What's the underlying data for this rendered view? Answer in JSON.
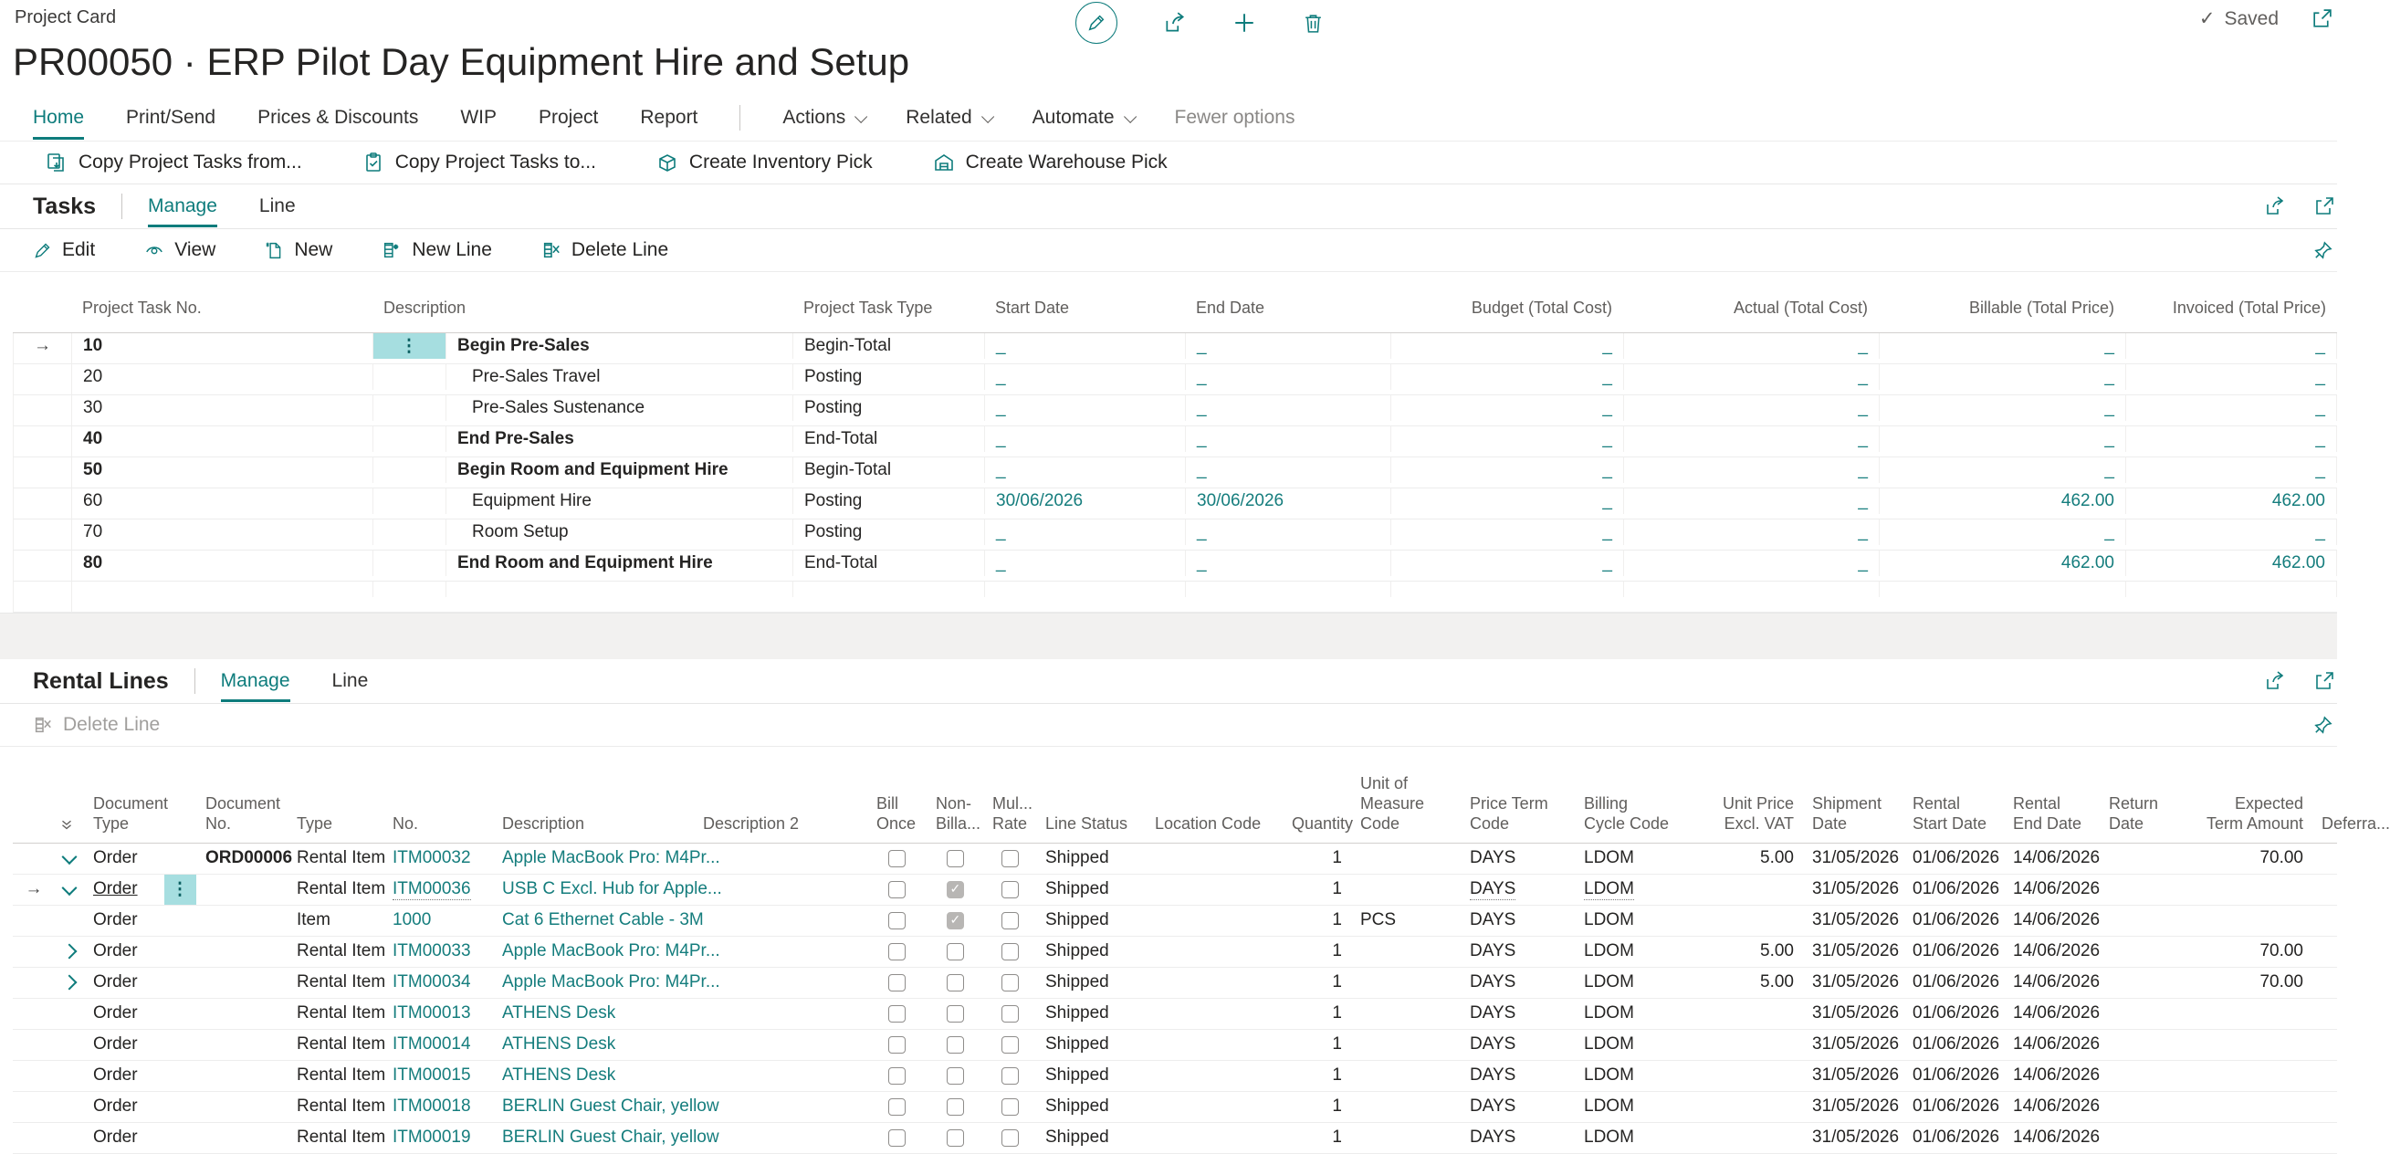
{
  "page": {
    "breadcrumb": "Project Card",
    "title": "PR00050 · ERP Pilot Day Equipment Hire and Setup",
    "saved_label": "Saved",
    "saved_check": "✓",
    "accent_color": "#0e7c7c",
    "link_color": "#157d7d",
    "selected_cell_color": "#a6dee0",
    "icons": [
      "edit-pencil-circle",
      "share",
      "add",
      "delete-trash",
      "popout-window",
      "pin",
      "collapse-all-chevrons"
    ]
  },
  "menu": {
    "items": [
      "Home",
      "Print/Send",
      "Prices & Discounts",
      "WIP",
      "Project",
      "Report"
    ],
    "dropdowns": [
      "Actions",
      "Related",
      "Automate"
    ],
    "fewer_options": "Fewer options"
  },
  "ribbon": [
    {
      "label": "Copy Project Tasks from...",
      "icon": "copy-from-icon"
    },
    {
      "label": "Copy Project Tasks to...",
      "icon": "copy-to-icon"
    },
    {
      "label": "Create Inventory Pick",
      "icon": "inventory-pick-icon"
    },
    {
      "label": "Create Warehouse Pick",
      "icon": "warehouse-pick-icon"
    }
  ],
  "tasks": {
    "title": "Tasks",
    "tabs": [
      "Manage",
      "Line"
    ],
    "toolbar": [
      "Edit",
      "View",
      "New",
      "New Line",
      "Delete Line"
    ],
    "columns": [
      "Project Task No.",
      "Description",
      "Project Task Type",
      "Start Date",
      "End Date",
      "Budget (Total Cost)",
      "Actual (Total Cost)",
      "Billable (Total Price)",
      "Invoiced (Total Price)"
    ],
    "rows": [
      {
        "arrow": true,
        "no": "10",
        "selected_cell": true,
        "desc": "Begin Pre-Sales",
        "bold": true,
        "indent": false,
        "type": "Begin-Total",
        "start": "_",
        "end": "_",
        "budget": "_",
        "actual": "_",
        "billable": "_",
        "invoiced": "_"
      },
      {
        "arrow": false,
        "no": "20",
        "desc": "Pre-Sales Travel",
        "bold": false,
        "indent": true,
        "type": "Posting",
        "start": "_",
        "end": "_",
        "budget": "_",
        "actual": "_",
        "billable": "_",
        "invoiced": "_"
      },
      {
        "arrow": false,
        "no": "30",
        "desc": "Pre-Sales Sustenance",
        "bold": false,
        "indent": true,
        "type": "Posting",
        "start": "_",
        "end": "_",
        "budget": "_",
        "actual": "_",
        "billable": "_",
        "invoiced": "_"
      },
      {
        "arrow": false,
        "no": "40",
        "desc": "End Pre-Sales",
        "bold": true,
        "indent": false,
        "type": "End-Total",
        "start": "_",
        "end": "_",
        "budget": "_",
        "actual": "_",
        "billable": "_",
        "invoiced": "_"
      },
      {
        "arrow": false,
        "no": "50",
        "desc": "Begin Room and Equipment Hire",
        "bold": true,
        "indent": false,
        "type": "Begin-Total",
        "start": "_",
        "end": "_",
        "budget": "_",
        "actual": "_",
        "billable": "_",
        "invoiced": "_"
      },
      {
        "arrow": false,
        "no": "60",
        "desc": "Equipment Hire",
        "bold": false,
        "indent": true,
        "type": "Posting",
        "start": "30/06/2026",
        "end": "30/06/2026",
        "budget": "_",
        "actual": "_",
        "billable": "462.00",
        "invoiced": "462.00"
      },
      {
        "arrow": false,
        "no": "70",
        "desc": "Room Setup",
        "bold": false,
        "indent": true,
        "type": "Posting",
        "start": "_",
        "end": "_",
        "budget": "_",
        "actual": "_",
        "billable": "_",
        "invoiced": "_"
      },
      {
        "arrow": false,
        "no": "80",
        "desc": "End Room and Equipment Hire",
        "bold": true,
        "indent": false,
        "type": "End-Total",
        "start": "_",
        "end": "_",
        "budget": "_",
        "actual": "_",
        "billable": "462.00",
        "invoiced": "462.00"
      },
      {
        "arrow": false,
        "no": "",
        "desc": "",
        "bold": false,
        "indent": false,
        "type": "",
        "start": "",
        "end": "",
        "budget": "",
        "actual": "",
        "billable": "",
        "invoiced": ""
      }
    ]
  },
  "rental": {
    "title": "Rental Lines",
    "tabs": [
      "Manage",
      "Line"
    ],
    "toolbar": [
      "Delete Line"
    ],
    "columns": [
      "Document Type",
      "Document No.",
      "Type",
      "No.",
      "Description",
      "Description 2",
      "Bill Once",
      "Non-Billa...",
      "Mul... Rate",
      "Line Status",
      "Location Code",
      "Quantity",
      "Unit of Measure Code",
      "Price Term Code",
      "Billing Cycle Code",
      "Unit Price Excl. VAT",
      "Shipment Date",
      "Rental Start Date",
      "Rental End Date",
      "Return Date",
      "Expected Term Amount",
      "Deferra..."
    ],
    "rows": [
      {
        "arrow": false,
        "expand": "down",
        "doctype": "Order",
        "selected": false,
        "indent": false,
        "docno": "ORD00006",
        "type": "Rental Item",
        "no": "ITM00032",
        "desc": "Apple MacBook Pro: M4Pr...",
        "desc2": "",
        "cb": [
          false,
          false,
          false
        ],
        "status": "Shipped",
        "loc": "",
        "qty": "1",
        "uom": "",
        "priceterm": "DAYS",
        "cycle": "LDOM",
        "price": "5.00",
        "ship": "31/05/2026",
        "start": "01/06/2026",
        "end": "14/06/2026",
        "return": "",
        "amount": "70.00",
        "defer": ""
      },
      {
        "arrow": true,
        "expand": "down",
        "doctype": "Order",
        "selected": true,
        "indent": false,
        "docno": "",
        "type": "Rental Item",
        "no": "ITM00036",
        "desc": "USB C Excl. Hub for Apple...",
        "desc2": "",
        "cb": [
          false,
          true,
          false
        ],
        "status": "Shipped",
        "loc": "",
        "qty": "1",
        "uom": "",
        "priceterm": "DAYS",
        "cycle": "LDOM",
        "price": "",
        "ship": "31/05/2026",
        "start": "01/06/2026",
        "end": "14/06/2026",
        "return": "",
        "amount": "",
        "defer": ""
      },
      {
        "arrow": false,
        "expand": "",
        "doctype": "Order",
        "selected": false,
        "indent": true,
        "docno": "",
        "type": "Item",
        "no": "1000",
        "desc": "Cat 6 Ethernet Cable - 3M",
        "desc2": "",
        "cb": [
          false,
          true,
          false
        ],
        "status": "Shipped",
        "loc": "",
        "qty": "1",
        "uom": "PCS",
        "priceterm": "DAYS",
        "cycle": "LDOM",
        "price": "",
        "ship": "31/05/2026",
        "start": "01/06/2026",
        "end": "14/06/2026",
        "return": "",
        "amount": "",
        "defer": ""
      },
      {
        "arrow": false,
        "expand": "right",
        "doctype": "Order",
        "selected": false,
        "indent": false,
        "docno": "",
        "type": "Rental Item",
        "no": "ITM00033",
        "desc": "Apple MacBook Pro: M4Pr...",
        "desc2": "",
        "cb": [
          false,
          false,
          false
        ],
        "status": "Shipped",
        "loc": "",
        "qty": "1",
        "uom": "",
        "priceterm": "DAYS",
        "cycle": "LDOM",
        "price": "5.00",
        "ship": "31/05/2026",
        "start": "01/06/2026",
        "end": "14/06/2026",
        "return": "",
        "amount": "70.00",
        "defer": ""
      },
      {
        "arrow": false,
        "expand": "right",
        "doctype": "Order",
        "selected": false,
        "indent": false,
        "docno": "",
        "type": "Rental Item",
        "no": "ITM00034",
        "desc": "Apple MacBook Pro: M4Pr...",
        "desc2": "",
        "cb": [
          false,
          false,
          false
        ],
        "status": "Shipped",
        "loc": "",
        "qty": "1",
        "uom": "",
        "priceterm": "DAYS",
        "cycle": "LDOM",
        "price": "5.00",
        "ship": "31/05/2026",
        "start": "01/06/2026",
        "end": "14/06/2026",
        "return": "",
        "amount": "70.00",
        "defer": ""
      },
      {
        "arrow": false,
        "expand": "",
        "doctype": "Order",
        "selected": false,
        "indent": false,
        "docno": "",
        "type": "Rental Item",
        "no": "ITM00013",
        "desc": "ATHENS Desk",
        "desc2": "",
        "cb": [
          false,
          false,
          false
        ],
        "status": "Shipped",
        "loc": "",
        "qty": "1",
        "uom": "",
        "priceterm": "DAYS",
        "cycle": "LDOM",
        "price": "",
        "ship": "31/05/2026",
        "start": "01/06/2026",
        "end": "14/06/2026",
        "return": "",
        "amount": "",
        "defer": ""
      },
      {
        "arrow": false,
        "expand": "",
        "doctype": "Order",
        "selected": false,
        "indent": false,
        "docno": "",
        "type": "Rental Item",
        "no": "ITM00014",
        "desc": "ATHENS Desk",
        "desc2": "",
        "cb": [
          false,
          false,
          false
        ],
        "status": "Shipped",
        "loc": "",
        "qty": "1",
        "uom": "",
        "priceterm": "DAYS",
        "cycle": "LDOM",
        "price": "",
        "ship": "31/05/2026",
        "start": "01/06/2026",
        "end": "14/06/2026",
        "return": "",
        "amount": "",
        "defer": ""
      },
      {
        "arrow": false,
        "expand": "",
        "doctype": "Order",
        "selected": false,
        "indent": false,
        "docno": "",
        "type": "Rental Item",
        "no": "ITM00015",
        "desc": "ATHENS Desk",
        "desc2": "",
        "cb": [
          false,
          false,
          false
        ],
        "status": "Shipped",
        "loc": "",
        "qty": "1",
        "uom": "",
        "priceterm": "DAYS",
        "cycle": "LDOM",
        "price": "",
        "ship": "31/05/2026",
        "start": "01/06/2026",
        "end": "14/06/2026",
        "return": "",
        "amount": "",
        "defer": ""
      },
      {
        "arrow": false,
        "expand": "",
        "doctype": "Order",
        "selected": false,
        "indent": false,
        "docno": "",
        "type": "Rental Item",
        "no": "ITM00018",
        "desc": "BERLIN Guest Chair, yellow",
        "desc2": "",
        "cb": [
          false,
          false,
          false
        ],
        "status": "Shipped",
        "loc": "",
        "qty": "1",
        "uom": "",
        "priceterm": "DAYS",
        "cycle": "LDOM",
        "price": "",
        "ship": "31/05/2026",
        "start": "01/06/2026",
        "end": "14/06/2026",
        "return": "",
        "amount": "",
        "defer": ""
      },
      {
        "arrow": false,
        "expand": "",
        "doctype": "Order",
        "selected": false,
        "indent": false,
        "docno": "",
        "type": "Rental Item",
        "no": "ITM00019",
        "desc": "BERLIN Guest Chair, yellow",
        "desc2": "",
        "cb": [
          false,
          false,
          false
        ],
        "status": "Shipped",
        "loc": "",
        "qty": "1",
        "uom": "",
        "priceterm": "DAYS",
        "cycle": "LDOM",
        "price": "",
        "ship": "31/05/2026",
        "start": "01/06/2026",
        "end": "14/06/2026",
        "return": "",
        "amount": "",
        "defer": ""
      }
    ]
  }
}
